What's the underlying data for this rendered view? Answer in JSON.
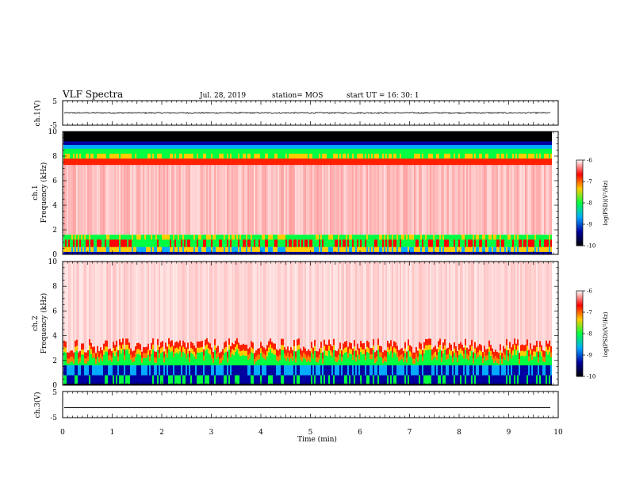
{
  "header": {
    "title": "VLF Spectra",
    "date": "Jul. 28, 2019",
    "station": "station= MOS",
    "start": "start UT = 16: 30: 1"
  },
  "chart_data": [
    {
      "type": "line",
      "name": "ch1-waveform",
      "ylabel": "ch.1(V)",
      "ylim": [
        -5,
        5
      ],
      "yticks": [
        "5",
        "-5"
      ],
      "xlim": [
        0,
        10
      ],
      "series": [
        {
          "level": 0,
          "noise": 0.25,
          "end": 9.85
        }
      ]
    },
    {
      "type": "heatmap",
      "name": "ch1-spectrogram",
      "ylabel_line1": "ch.1",
      "ylabel_line2": "Frequency (kHz)",
      "ylim": [
        0,
        10
      ],
      "yticks": [
        "0",
        "2",
        "4",
        "6",
        "8",
        "10"
      ],
      "xlim": [
        0,
        9.85
      ],
      "colorbar": {
        "label": "log(PSD)(V²/Hz)",
        "ticks": [
          "-6",
          "-7",
          "-8",
          "-9",
          "-10"
        ],
        "range": [
          -10,
          -6
        ]
      }
    },
    {
      "type": "heatmap",
      "name": "ch2-spectrogram",
      "ylabel_line1": "ch.2",
      "ylabel_line2": "Frequency (kHz)",
      "ylim": [
        0,
        10
      ],
      "yticks": [
        "0",
        "2",
        "4",
        "6",
        "8",
        "10"
      ],
      "xlim": [
        0,
        9.85
      ],
      "colorbar": {
        "label": "log(PSD)(V²/Hz)",
        "ticks": [
          "-6",
          "-7",
          "-8",
          "-9",
          "-10"
        ],
        "range": [
          -10,
          -6
        ]
      }
    },
    {
      "type": "line",
      "name": "ch3-waveform",
      "ylabel": "ch.3(V)",
      "ylim": [
        -5,
        5
      ],
      "yticks": [
        "5",
        "-5"
      ],
      "xlim": [
        0,
        10
      ],
      "series": [
        {
          "level": -1.2,
          "noise": 0,
          "end": 9.85
        }
      ]
    }
  ],
  "xaxis": {
    "label": "Time (min)",
    "ticks": [
      "0",
      "1",
      "2",
      "3",
      "4",
      "5",
      "6",
      "7",
      "8",
      "9",
      "10"
    ],
    "range": [
      0,
      10
    ]
  },
  "colors": {
    "colormap": [
      "#ffffff",
      "#ff0000",
      "#ffcc00",
      "#00ff40",
      "#00aaff",
      "#0000a0",
      "#000000"
    ]
  }
}
